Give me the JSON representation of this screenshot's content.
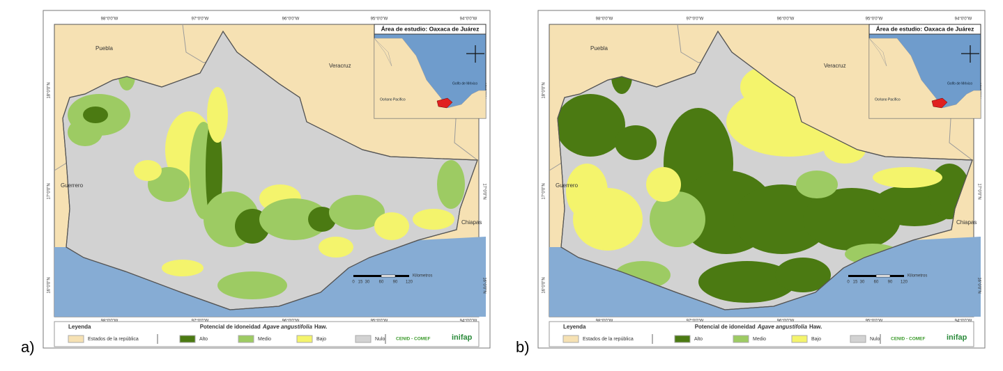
{
  "panels": [
    {
      "label": "a)"
    },
    {
      "label": "b)"
    }
  ],
  "inset": {
    "title": "Área de estudio: Oaxaca de Juárez",
    "gulf": "Golfo de México",
    "ocean": "Océano Pacífico"
  },
  "map_labels": {
    "puebla": "Puebla",
    "veracruz": "Veracruz",
    "guerrero": "Guerrero",
    "chiapas": "Chiapas"
  },
  "longitudes": [
    "98°0'0\"W",
    "97°0'0\"W",
    "96°0'0\"W",
    "95°0'0\"W",
    "94°0'0\"W"
  ],
  "latitudes": [
    "18°0'0\"N",
    "17°0'0\"N",
    "16°0'0\"N"
  ],
  "scale_bar": {
    "ticks": [
      "0",
      "15",
      "30",
      "60",
      "90",
      "120"
    ],
    "unit": "Kilometros"
  },
  "legend": {
    "title": "Leyenda",
    "states": "Estados de la república",
    "potential_prefix": "Potencial de idoneidad",
    "potential_species": "Agave angustifolia",
    "potential_suffix": "Haw.",
    "classes": [
      {
        "name": "Alto",
        "color": "#4b7a12"
      },
      {
        "name": "Medio",
        "color": "#9dcb63"
      },
      {
        "name": "Bajo",
        "color": "#f4f46c"
      },
      {
        "name": "Nulo",
        "color": "#d2d2d2"
      }
    ],
    "states_color": "#f6e1b3",
    "org": "CENID - COMEF",
    "logo": "inifap"
  }
}
